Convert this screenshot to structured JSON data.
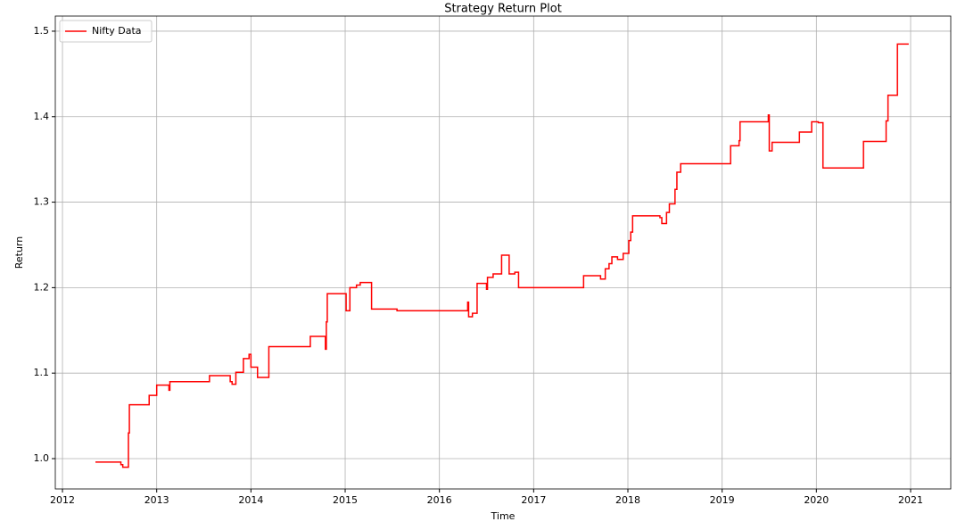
{
  "chart_data": {
    "type": "line",
    "title": "Strategy Return Plot",
    "xlabel": "Time",
    "ylabel": "Return",
    "x": [
      2012.35,
      2012.62,
      2012.62,
      2012.64,
      2012.64,
      2012.7,
      2012.7,
      2012.71,
      2012.71,
      2012.92,
      2012.92,
      2013.0,
      2013.0,
      2013.13,
      2013.13,
      2013.14,
      2013.14,
      2013.56,
      2013.56,
      2013.78,
      2013.78,
      2013.8,
      2013.8,
      2013.84,
      2013.84,
      2013.92,
      2013.92,
      2013.98,
      2013.98,
      2014.0,
      2014.0,
      2014.07,
      2014.07,
      2014.19,
      2014.19,
      2014.63,
      2014.63,
      2014.79,
      2014.79,
      2014.8,
      2014.8,
      2014.81,
      2014.81,
      2015.01,
      2015.01,
      2015.05,
      2015.05,
      2015.12,
      2015.12,
      2015.16,
      2015.16,
      2015.28,
      2015.28,
      2015.55,
      2015.55,
      2016.3,
      2016.3,
      2016.31,
      2016.31,
      2016.35,
      2016.35,
      2016.4,
      2016.4,
      2016.5,
      2016.5,
      2016.51,
      2016.51,
      2016.57,
      2016.57,
      2016.66,
      2016.66,
      2016.74,
      2016.74,
      2016.8,
      2016.8,
      2016.84,
      2016.84,
      2017.53,
      2017.53,
      2017.71,
      2017.71,
      2017.76,
      2017.76,
      2017.8,
      2017.8,
      2017.83,
      2017.83,
      2017.89,
      2017.89,
      2017.95,
      2017.95,
      2018.01,
      2018.01,
      2018.03,
      2018.03,
      2018.05,
      2018.05,
      2018.34,
      2018.34,
      2018.36,
      2018.36,
      2018.41,
      2018.41,
      2018.44,
      2018.44,
      2018.5,
      2018.5,
      2018.52,
      2018.52,
      2018.56,
      2018.56,
      2019.09,
      2019.09,
      2019.18,
      2019.18,
      2019.19,
      2019.19,
      2019.49,
      2019.49,
      2019.5,
      2019.5,
      2019.53,
      2019.53,
      2019.82,
      2019.82,
      2019.95,
      2019.95,
      2020.02,
      2020.02,
      2020.07,
      2020.07,
      2020.5,
      2020.5,
      2020.74,
      2020.74,
      2020.76,
      2020.76,
      2020.86,
      2020.86,
      2020.98
    ],
    "series": [
      {
        "name": "Nifty Data",
        "color": "#ff0000",
        "values": [
          0.996,
          0.996,
          0.993,
          0.993,
          0.99,
          0.99,
          1.03,
          1.03,
          1.063,
          1.063,
          1.074,
          1.074,
          1.086,
          1.086,
          1.08,
          1.08,
          1.09,
          1.09,
          1.097,
          1.097,
          1.09,
          1.09,
          1.087,
          1.087,
          1.101,
          1.101,
          1.117,
          1.117,
          1.122,
          1.122,
          1.107,
          1.107,
          1.095,
          1.095,
          1.131,
          1.131,
          1.143,
          1.143,
          1.128,
          1.128,
          1.16,
          1.16,
          1.193,
          1.193,
          1.173,
          1.173,
          1.2,
          1.2,
          1.203,
          1.203,
          1.206,
          1.206,
          1.175,
          1.175,
          1.173,
          1.173,
          1.183,
          1.183,
          1.166,
          1.166,
          1.17,
          1.17,
          1.205,
          1.205,
          1.198,
          1.198,
          1.212,
          1.212,
          1.216,
          1.216,
          1.238,
          1.238,
          1.216,
          1.216,
          1.218,
          1.218,
          1.2,
          1.2,
          1.214,
          1.214,
          1.21,
          1.21,
          1.222,
          1.222,
          1.228,
          1.228,
          1.236,
          1.236,
          1.233,
          1.233,
          1.24,
          1.24,
          1.255,
          1.255,
          1.265,
          1.265,
          1.284,
          1.284,
          1.282,
          1.282,
          1.275,
          1.275,
          1.288,
          1.288,
          1.298,
          1.298,
          1.315,
          1.315,
          1.335,
          1.335,
          1.345,
          1.345,
          1.366,
          1.366,
          1.372,
          1.372,
          1.394,
          1.394,
          1.402,
          1.402,
          1.36,
          1.36,
          1.37,
          1.37,
          1.382,
          1.382,
          1.394,
          1.394,
          1.393,
          1.393,
          1.34,
          1.34,
          1.371,
          1.371,
          1.395,
          1.395,
          1.425,
          1.425,
          1.485,
          1.485
        ]
      }
    ],
    "xlim": [
      2011.924,
      2021.426
    ],
    "xticks": [
      2012,
      2013,
      2014,
      2015,
      2016,
      2017,
      2018,
      2019,
      2020,
      2021
    ],
    "ylim": [
      0.9645,
      1.5177
    ],
    "yticks": [
      {
        "value": 1.0,
        "label": "1.0"
      },
      1.1,
      1.2,
      1.3,
      1.4,
      1.5
    ],
    "grid": true,
    "legend": "upper left"
  }
}
